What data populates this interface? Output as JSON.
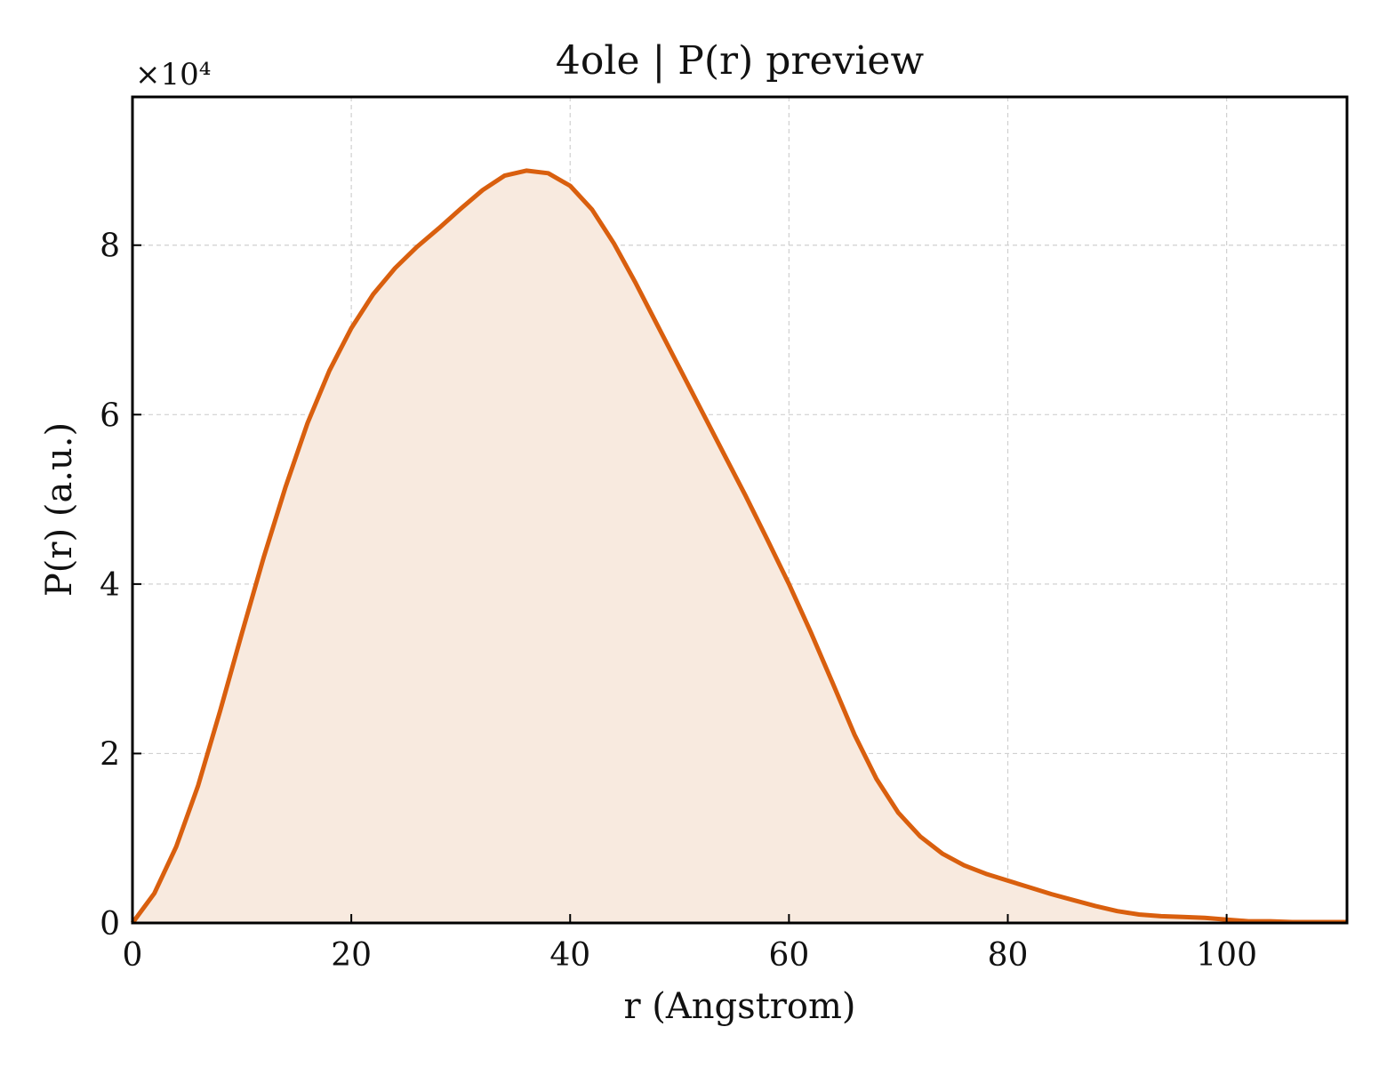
{
  "chart_data": {
    "type": "area",
    "title": "4ole | P(r) preview",
    "xlabel": "r (Angstrom)",
    "ylabel": "P(r) (a.u.)",
    "y_multiplier": "×10⁴",
    "xlim": [
      0,
      111
    ],
    "ylim": [
      0,
      9.75
    ],
    "x_ticks": [
      0,
      20,
      40,
      60,
      80,
      100
    ],
    "y_ticks": [
      0,
      2,
      4,
      6,
      8
    ],
    "grid": true,
    "line_color": "#d95f0e",
    "fill_color": "#f8eadf",
    "series": [
      {
        "x": [
          0,
          2,
          4,
          6,
          8,
          10,
          12,
          14,
          16,
          18,
          20,
          22,
          24,
          26,
          28,
          30,
          32,
          34,
          36,
          38,
          40,
          42,
          44,
          46,
          48,
          50,
          52,
          54,
          56,
          58,
          60,
          62,
          64,
          66,
          68,
          70,
          72,
          74,
          76,
          78,
          80,
          82,
          84,
          86,
          88,
          90,
          92,
          94,
          96,
          98,
          100,
          102,
          104,
          106,
          108,
          111
        ],
        "y": [
          0,
          0.35,
          0.9,
          1.62,
          2.5,
          3.42,
          4.32,
          5.15,
          5.9,
          6.52,
          7.02,
          7.42,
          7.73,
          7.98,
          8.2,
          8.43,
          8.65,
          8.82,
          8.88,
          8.85,
          8.7,
          8.42,
          8.02,
          7.55,
          7.05,
          6.55,
          6.05,
          5.55,
          5.05,
          4.53,
          4.0,
          3.43,
          2.83,
          2.22,
          1.7,
          1.3,
          1.02,
          0.82,
          0.68,
          0.58,
          0.5,
          0.42,
          0.34,
          0.27,
          0.2,
          0.14,
          0.1,
          0.08,
          0.07,
          0.06,
          0.04,
          0.02,
          0.02,
          0.01,
          0.01,
          0.01
        ]
      }
    ]
  }
}
